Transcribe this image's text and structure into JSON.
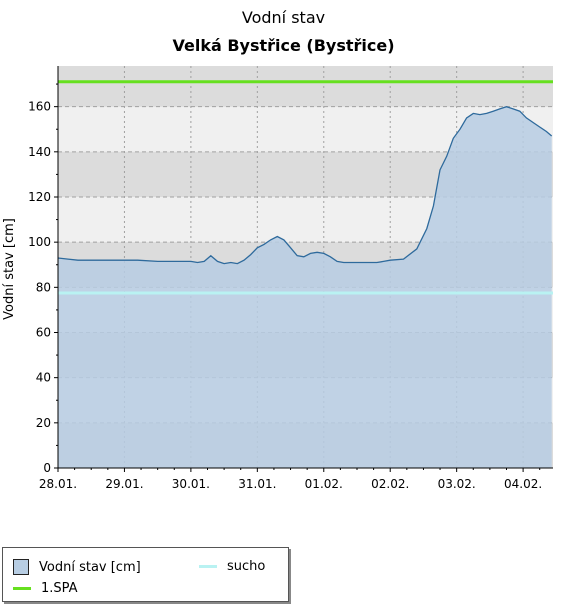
{
  "chart_data": {
    "type": "area",
    "title": "Vodní stav",
    "subtitle": "Velká Bystřice (Bystřice)",
    "ylabel": "Vodní stav [cm]",
    "xlabel": "",
    "ylim": [
      0,
      178
    ],
    "yticks": [
      0,
      20,
      40,
      60,
      80,
      100,
      120,
      140,
      160
    ],
    "ytick_labels": [
      "0",
      "20",
      "40",
      "60",
      "80",
      "100",
      "120",
      "140",
      "160"
    ],
    "xlim": [
      0,
      7.45
    ],
    "xticks": [
      0,
      1,
      2,
      3,
      4,
      5,
      6,
      7
    ],
    "xtick_labels": [
      "28.01.",
      "29.01.",
      "30.01.",
      "31.01.",
      "01.02.",
      "02.02.",
      "03.02.",
      "04.02."
    ],
    "grid": true,
    "series": [
      {
        "name": "Vodní stav [cm]",
        "color": "#2e6a9c",
        "fill": "#b7cde3",
        "x": [
          0,
          0.15,
          0.3,
          0.5,
          0.8,
          1.0,
          1.2,
          1.5,
          1.8,
          2.0,
          2.1,
          2.2,
          2.3,
          2.4,
          2.5,
          2.6,
          2.7,
          2.8,
          2.9,
          3.0,
          3.1,
          3.2,
          3.3,
          3.4,
          3.5,
          3.6,
          3.7,
          3.8,
          3.9,
          4.0,
          4.1,
          4.2,
          4.3,
          4.4,
          4.5,
          4.6,
          4.7,
          4.8,
          4.9,
          5.0,
          5.2,
          5.4,
          5.55,
          5.65,
          5.75,
          5.85,
          5.95,
          6.05,
          6.15,
          6.25,
          6.35,
          6.45,
          6.55,
          6.65,
          6.75,
          6.85,
          6.95,
          7.05,
          7.15,
          7.25,
          7.35,
          7.43
        ],
        "y": [
          93,
          92.5,
          92,
          92,
          92,
          92,
          92,
          91.5,
          91.5,
          91.5,
          91,
          91.5,
          94,
          91.5,
          90.5,
          91,
          90.5,
          92,
          94.5,
          97.5,
          99,
          101,
          102.5,
          101,
          97.5,
          94,
          93.5,
          95,
          95.5,
          95,
          93.5,
          91.5,
          91,
          91,
          91,
          91,
          91,
          91,
          91.5,
          92,
          92.5,
          97,
          106,
          116,
          132,
          138,
          146,
          150,
          155,
          157,
          156.5,
          157,
          158,
          159,
          160,
          159,
          158,
          155,
          153,
          151,
          149,
          147
        ]
      }
    ],
    "reference_lines": [
      {
        "name": "1.SPA",
        "value": 171,
        "color": "#66e01f"
      },
      {
        "name": "sucho",
        "value": 77.5,
        "color": "#b9f2f2"
      }
    ],
    "legend_position": "bottom-left"
  },
  "legend": {
    "items": [
      {
        "label": "Vodní stav [cm]"
      },
      {
        "label": "sucho"
      },
      {
        "label": "1.SPA"
      }
    ]
  }
}
